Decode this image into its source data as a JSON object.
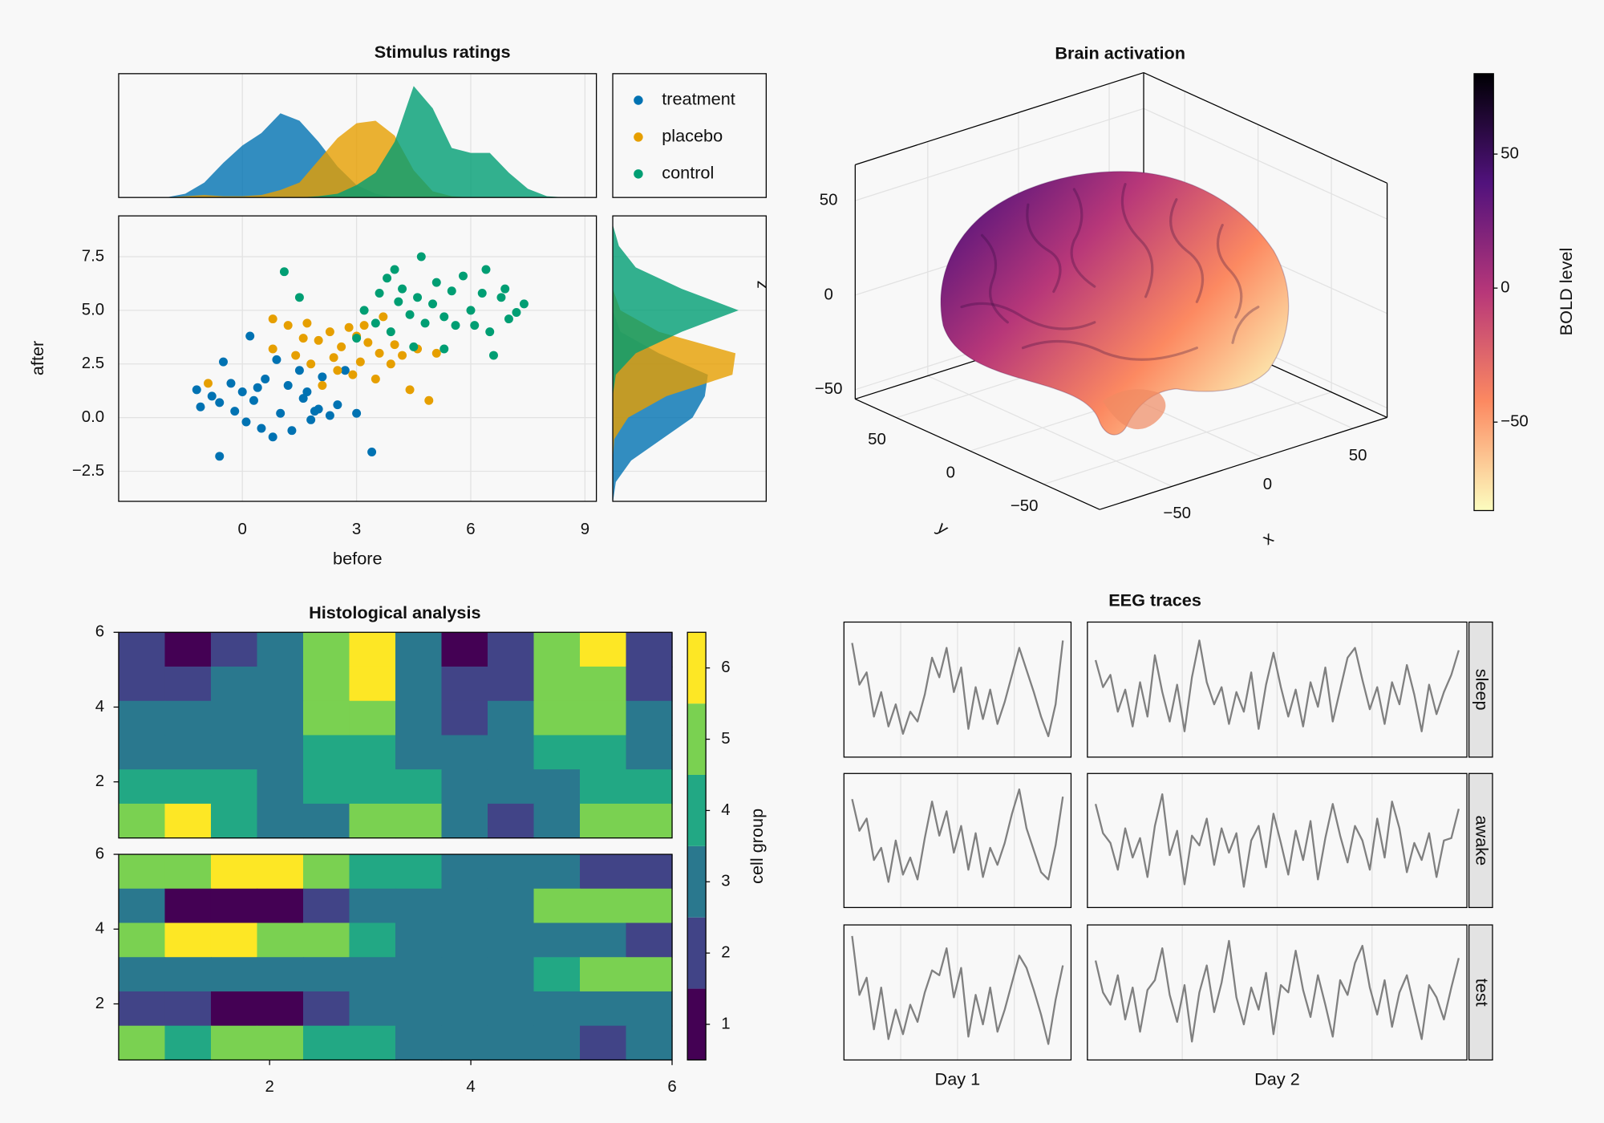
{
  "chart_data": [
    {
      "type": "scatter",
      "title": "Stimulus ratings",
      "xlabel": "before",
      "ylabel": "after",
      "xlim": [
        -3.25,
        9.3
      ],
      "xticks": [
        0,
        3,
        6,
        9
      ],
      "ylim": [
        -3.9,
        9.4
      ],
      "yticks": [
        {
          "value": -2.5,
          "label": "−2.5"
        },
        {
          "value": 0,
          "label": "0.0"
        },
        2.5,
        {
          "value": 5,
          "label": "5.0"
        },
        7.5
      ],
      "grid": true,
      "legend": "right",
      "series": [
        {
          "name": "treatment",
          "color": "#0072b2",
          "x": [
            -1.2,
            -1.1,
            -0.8,
            -0.6,
            -0.5,
            -0.3,
            -0.2,
            0,
            0.1,
            0.2,
            0.3,
            0.5,
            0.6,
            0.8,
            0.9,
            1.0,
            1.2,
            1.3,
            1.5,
            1.6,
            1.8,
            2.0,
            2.1,
            2.3,
            2.5,
            2.7,
            3.0,
            3.4,
            -0.6,
            0.4,
            1.7,
            1.9
          ],
          "values": [
            1.3,
            0.5,
            1.0,
            -1.8,
            2.6,
            1.6,
            0.3,
            1.2,
            -0.2,
            3.8,
            0.8,
            -0.5,
            1.8,
            -0.9,
            2.7,
            0.2,
            1.5,
            -0.6,
            2.2,
            0.9,
            -0.1,
            0.4,
            1.9,
            0.1,
            0.6,
            2.2,
            0.2,
            -1.6,
            0.7,
            1.4,
            1.2,
            0.3
          ]
        },
        {
          "name": "placebo",
          "color": "#e69f00",
          "x": [
            -0.9,
            0.8,
            0.8,
            1.2,
            1.4,
            1.7,
            1.8,
            2.0,
            2.1,
            2.3,
            2.4,
            2.6,
            2.8,
            2.9,
            3.1,
            3.2,
            3.3,
            3.5,
            3.6,
            3.7,
            3.9,
            4.0,
            4.2,
            4.4,
            4.6,
            4.9,
            5.1,
            2.5,
            3.0,
            1.6
          ],
          "values": [
            1.6,
            4.6,
            3.2,
            4.3,
            2.9,
            4.4,
            2.5,
            3.6,
            1.5,
            4.0,
            2.8,
            3.3,
            4.2,
            2.0,
            2.6,
            4.3,
            3.5,
            1.8,
            3.0,
            4.7,
            2.5,
            3.4,
            2.9,
            1.3,
            3.2,
            0.8,
            3.0,
            2.2,
            3.8,
            3.7
          ]
        },
        {
          "name": "control",
          "color": "#009e73",
          "x": [
            3.0,
            3.2,
            3.5,
            3.6,
            3.8,
            3.9,
            4.1,
            4.2,
            4.4,
            4.5,
            4.6,
            4.7,
            4.8,
            5.0,
            5.1,
            5.3,
            5.5,
            5.6,
            5.8,
            6.0,
            6.1,
            6.3,
            6.4,
            6.5,
            6.6,
            6.8,
            7.0,
            7.2,
            7.4,
            5.3,
            4.0,
            6.9,
            1.1,
            1.5
          ],
          "values": [
            3.7,
            5.0,
            4.4,
            5.8,
            6.5,
            4.0,
            5.4,
            6.0,
            4.8,
            3.3,
            5.6,
            7.5,
            4.4,
            5.3,
            6.3,
            4.7,
            5.9,
            4.3,
            6.6,
            5.0,
            4.3,
            5.8,
            6.9,
            4.0,
            2.9,
            5.6,
            4.6,
            4.9,
            5.3,
            3.2,
            6.9,
            6.0,
            6.8,
            5.6
          ]
        }
      ],
      "marginal_x": {
        "ylim": [
          0,
          1
        ],
        "x": [
          -2,
          -1.5,
          -1,
          -0.5,
          0,
          0.5,
          1,
          1.5,
          2,
          2.5,
          3,
          3.5,
          4,
          4.5,
          5,
          5.5,
          6,
          6.5,
          7,
          7.5,
          8,
          8.5
        ],
        "values": [
          [
            0,
            0.03,
            0.12,
            0.28,
            0.42,
            0.52,
            0.68,
            0.62,
            0.45,
            0.25,
            0.1,
            0.03,
            0,
            0,
            0,
            0,
            0,
            0,
            0,
            0,
            0,
            0
          ],
          [
            0,
            0.01,
            0.02,
            0.01,
            0.01,
            0.02,
            0.06,
            0.12,
            0.3,
            0.48,
            0.6,
            0.62,
            0.5,
            0.22,
            0.05,
            0.01,
            0,
            0,
            0,
            0,
            0,
            0
          ],
          [
            0,
            0,
            0,
            0,
            0,
            0,
            0,
            0,
            0.01,
            0.03,
            0.1,
            0.2,
            0.45,
            0.9,
            0.72,
            0.4,
            0.36,
            0.36,
            0.2,
            0.07,
            0.01,
            0
          ]
        ]
      },
      "marginal_y": {
        "xlim": [
          0,
          1
        ],
        "y": [
          -4,
          -3,
          -2,
          -1,
          0,
          1,
          2,
          3,
          4,
          5,
          6,
          7,
          8,
          9
        ],
        "values": [
          [
            0,
            0.02,
            0.12,
            0.32,
            0.52,
            0.6,
            0.62,
            0.3,
            0.05,
            0,
            0,
            0,
            0,
            0
          ],
          [
            0,
            0,
            0,
            0.01,
            0.1,
            0.35,
            0.78,
            0.8,
            0.3,
            0.05,
            0,
            0,
            0,
            0
          ],
          [
            0,
            0,
            0,
            0,
            0,
            0,
            0.02,
            0.15,
            0.45,
            0.82,
            0.45,
            0.15,
            0.04,
            0
          ]
        ]
      }
    },
    {
      "type": "surface3d",
      "title": "Brain activation",
      "xlabel": "x",
      "ylabel": "y",
      "zlabel": "z",
      "xlim": [
        -90,
        69
      ],
      "xticks": [
        {
          "value": -50,
          "label": "−50"
        },
        0,
        50
      ],
      "ylim": [
        -88,
        78
      ],
      "yticks": [
        {
          "value": -50,
          "label": "−50"
        },
        0,
        50
      ],
      "zlim": [
        -55,
        69
      ],
      "zticks": [
        {
          "value": -50,
          "label": "−50"
        },
        0,
        50
      ],
      "colorbar": {
        "label": "BOLD level",
        "limits": [
          -83,
          80
        ],
        "ticks": [
          {
            "value": -50,
            "label": "−50"
          },
          0,
          50
        ],
        "colors": [
          "#fcfdbf",
          "#fc8961",
          "#b73779",
          "#51127c",
          "#000004"
        ]
      }
    },
    {
      "type": "contourf",
      "title": "Histological analysis",
      "xlim": [
        0.5,
        6
      ],
      "xticks": [
        2,
        4,
        6
      ],
      "ylim": [
        0.5,
        6
      ],
      "yticks": [
        2,
        4,
        6
      ],
      "levels": [
        0.5,
        1.5,
        2.5,
        3.5,
        4.5,
        5.5,
        6.5
      ],
      "colors": [
        "#440154",
        "#414487",
        "#2a788e",
        "#22a884",
        "#7ad151",
        "#fde725"
      ],
      "colorbar": {
        "label": "cell group",
        "ticks": [
          1,
          2,
          3,
          4,
          5,
          6
        ]
      },
      "panels": [
        {
          "z": [
            [
              2,
              1.3,
              2.2,
              3,
              5,
              6.2,
              3,
              1.4,
              2,
              5.3,
              6.1,
              1.6
            ],
            [
              2.2,
              1.8,
              2.5,
              3.2,
              5.1,
              5.6,
              3,
              1.8,
              2.3,
              5.2,
              5.4,
              2.1
            ],
            [
              2.8,
              2.5,
              2.9,
              3.3,
              4.6,
              4.8,
              3.2,
              2.4,
              2.8,
              4.7,
              4.6,
              2.7
            ],
            [
              3.3,
              3.2,
              3.3,
              3.4,
              4,
              4.2,
              3.4,
              3,
              3.3,
              4.1,
              4.0,
              3.2
            ],
            [
              4.1,
              3.8,
              3.6,
              3.3,
              3.6,
              3.8,
              3.5,
              3.3,
              3.4,
              3.4,
              3.6,
              3.8
            ],
            [
              5.2,
              5.6,
              4.2,
              3.3,
              3.4,
              4.8,
              5.3,
              3.1,
              2.2,
              3.4,
              4.5,
              5.4
            ]
          ]
        },
        {
          "z": [
            [
              4.5,
              5.2,
              5.8,
              6.1,
              5.2,
              4.2,
              3.6,
              3.2,
              3,
              3.3,
              2.4,
              2.2
            ],
            [
              2.5,
              1.4,
              1.2,
              1.3,
              2.2,
              3.2,
              3.4,
              3.1,
              3,
              4.5,
              5.1,
              4.6
            ],
            [
              4.8,
              5.8,
              6.2,
              5.4,
              4.6,
              3.8,
              3.3,
              3.1,
              2.9,
              2.8,
              2.5,
              2.3
            ],
            [
              3.3,
              3.1,
              3.1,
              3.2,
              3.3,
              3.4,
              3.3,
              3.1,
              3.3,
              4.4,
              5.2,
              5.4
            ],
            [
              2.4,
              1.5,
              1.2,
              1.4,
              2.1,
              3.2,
              3.3,
              3.1,
              3.0,
              3.2,
              3.0,
              3.1
            ],
            [
              4.8,
              4.3,
              5.3,
              4.6,
              4.4,
              4.0,
              3.2,
              3.1,
              3.0,
              3.4,
              2.2,
              3.3
            ]
          ]
        }
      ]
    },
    {
      "type": "line",
      "title": "EEG traces",
      "columns": [
        "Day 1",
        "Day 2"
      ],
      "rows": [
        "sleep",
        "awake",
        "test"
      ],
      "color": "#808080",
      "ylim": [
        -2.2,
        2.8
      ],
      "traces": [
        [
          [
            2.2,
            0.5,
            1.0,
            -0.8,
            0.2,
            -1.2,
            -0.3,
            -1.5,
            -0.6,
            -1.0,
            0.1,
            1.6,
            0.8,
            2.0,
            0.2,
            1.2,
            -1.3,
            0.4,
            -0.9,
            0.3,
            -1.1,
            -0.2,
            0.9,
            2.0,
            1.1,
            0.2,
            -0.8,
            -1.6,
            -0.3,
            2.3
          ],
          [
            1.5,
            0.4,
            0.9,
            -0.6,
            0.3,
            -1.2,
            0.6,
            -0.8,
            1.7,
            0.2,
            -1.0,
            0.5,
            -1.4,
            0.8,
            2.3,
            0.6,
            -0.3,
            0.4,
            -1.1,
            0.2,
            -0.6,
            1.0,
            -1.3,
            0.5,
            1.8,
            0.4,
            -0.8,
            0.3,
            -1.2,
            0.6,
            -0.4,
            1.2,
            -1.0,
            0.3,
            1.6,
            2.0,
            0.7,
            -0.5,
            0.4,
            -1.1,
            0.6,
            -0.3,
            1.3,
            0.1,
            -1.4,
            0.5,
            -0.7,
            0.2,
            0.9,
            1.9
          ]
        ],
        [
          [
            2.0,
            0.7,
            1.2,
            -0.5,
            0.0,
            -1.4,
            0.3,
            -1.1,
            -0.4,
            -1.3,
            0.4,
            1.9,
            0.5,
            1.5,
            -0.2,
            0.9,
            -0.9,
            0.6,
            -1.2,
            0.0,
            -0.7,
            0.2,
            1.4,
            2.4,
            0.8,
            -0.1,
            -1.0,
            -1.3,
            0.1,
            2.1
          ],
          [
            1.8,
            0.6,
            0.2,
            -0.9,
            0.8,
            -0.4,
            0.4,
            -1.2,
            0.9,
            2.2,
            -0.3,
            0.7,
            -1.5,
            0.5,
            0.1,
            1.2,
            -0.7,
            0.8,
            -0.2,
            0.6,
            -1.6,
            0.3,
            0.9,
            -0.8,
            1.4,
            0.2,
            -1.1,
            0.7,
            -0.5,
            1.1,
            -1.3,
            0.4,
            1.8,
            0.5,
            -0.6,
            0.9,
            0.3,
            -0.9,
            1.2,
            -0.4,
            1.9,
            0.8,
            -1.0,
            0.2,
            -0.5,
            0.6,
            -1.2,
            0.3,
            0.4,
            1.6
          ]
        ],
        [
          [
            2.6,
            0.2,
            0.9,
            -1.2,
            0.5,
            -1.6,
            -0.4,
            -1.4,
            -0.2,
            -0.9,
            0.3,
            1.2,
            1.0,
            2.1,
            0.1,
            1.3,
            -1.5,
            0.2,
            -1.0,
            0.5,
            -1.3,
            -0.4,
            0.7,
            1.8,
            1.3,
            0.4,
            -0.6,
            -1.8,
            0.0,
            1.4
          ],
          [
            1.6,
            0.3,
            -0.2,
            1.0,
            -0.8,
            0.5,
            -1.3,
            0.4,
            0.8,
            2.1,
            0.2,
            -0.9,
            0.6,
            -1.7,
            0.3,
            1.4,
            -0.5,
            0.7,
            2.4,
            0.1,
            -1.0,
            0.5,
            -0.4,
            1.1,
            -1.4,
            0.6,
            0.3,
            2.0,
            0.4,
            -0.7,
            1.0,
            -0.2,
            -1.5,
            0.8,
            0.2,
            1.5,
            2.2,
            0.5,
            -0.6,
            0.8,
            -1.1,
            0.3,
            1.0,
            -0.3,
            -1.6,
            0.6,
            0.1,
            -0.8,
            0.5,
            1.7
          ]
        ]
      ]
    }
  ]
}
